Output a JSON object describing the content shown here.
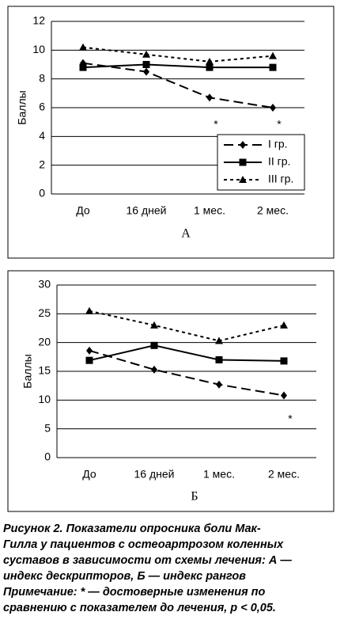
{
  "chart_data": [
    {
      "type": "line",
      "panel_label": "А",
      "y_label": "Баллы",
      "categories": [
        "До",
        "16 дней",
        "1 мес.",
        "2 мес."
      ],
      "ylim": [
        0,
        12
      ],
      "yticks": [
        0,
        2,
        4,
        6,
        8,
        10,
        12
      ],
      "grid": true,
      "legend": "lower right",
      "series": [
        {
          "name": "I гр.",
          "color": "#000000",
          "line_style": "dashed",
          "marker": "diamond",
          "values": [
            9.1,
            8.5,
            6.7,
            6.0
          ]
        },
        {
          "name": "II гр.",
          "color": "#000000",
          "line_style": "solid",
          "marker": "square",
          "values": [
            8.8,
            9.0,
            8.8,
            8.8
          ]
        },
        {
          "name": "III гр.",
          "color": "#000000",
          "line_style": "dotted",
          "marker": "triangle",
          "values": [
            10.2,
            9.7,
            9.2,
            9.6
          ]
        }
      ],
      "annotations": [
        {
          "text": "*",
          "x": "1 мес.",
          "y": 4.8
        },
        {
          "text": "*",
          "x": "2 мес.",
          "y": 4.8
        }
      ]
    },
    {
      "type": "line",
      "panel_label": "Б",
      "y_label": "Баллы",
      "categories": [
        "До",
        "16 дней",
        "1 мес.",
        "2 мес."
      ],
      "ylim": [
        0,
        30
      ],
      "yticks": [
        0,
        5,
        10,
        15,
        20,
        25,
        30
      ],
      "grid": true,
      "series": [
        {
          "name": "I гр.",
          "color": "#000000",
          "line_style": "dashed",
          "marker": "diamond",
          "values": [
            18.6,
            15.3,
            12.7,
            10.8
          ]
        },
        {
          "name": "II гр.",
          "color": "#000000",
          "line_style": "solid",
          "marker": "square",
          "values": [
            16.9,
            19.5,
            17.0,
            16.8
          ]
        },
        {
          "name": "III гр.",
          "color": "#000000",
          "line_style": "dotted",
          "marker": "triangle",
          "values": [
            25.5,
            23.0,
            20.3,
            23.0
          ]
        }
      ],
      "annotations": [
        {
          "text": "*",
          "x": "2 мес.",
          "y": 6.6
        }
      ]
    }
  ],
  "caption": [
    "Рисунок 2. Показатели опросника боли Мак-",
    "Гилла у пациентов с остеоартрозом коленных",
    "суставов в зависимости от схемы лечения: А —",
    "индекс дескрипторов, Б — индекс рангов",
    "Примечание: * — достоверные изменения по",
    "сравнению с показателем до лечения, p < 0,05."
  ]
}
